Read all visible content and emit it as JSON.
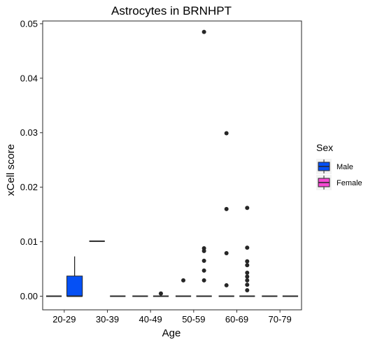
{
  "chart_data": {
    "type": "boxplot",
    "title": "Astrocytes in BRNHPT",
    "xlabel": "Age",
    "ylabel": "xCell score",
    "ylim": [
      -0.0025,
      0.0505
    ],
    "y_ticks": [
      0.0,
      0.01,
      0.02,
      0.03,
      0.04,
      0.05
    ],
    "y_tick_labels": [
      "0.00",
      "0.01",
      "0.02",
      "0.03",
      "0.04",
      "0.05"
    ],
    "grid": false,
    "legend": {
      "title": "Sex",
      "placement": "right",
      "entries": [
        {
          "name": "Male",
          "color": "#0550F5"
        },
        {
          "name": "Female",
          "color": "#F549D2"
        }
      ]
    },
    "categories": [
      "20-29",
      "30-39",
      "40-49",
      "50-59",
      "60-69",
      "70-79"
    ],
    "series": [
      {
        "name": "Male",
        "color": "#0550F5",
        "boxes": [
          {
            "q1": 0.0,
            "median": 0.0,
            "q3": 0.0,
            "low": 0.0,
            "high": 0.0,
            "outliers": []
          },
          {
            "q1": 0.0101,
            "median": 0.0101,
            "q3": 0.0101,
            "low": 0.0101,
            "high": 0.0101,
            "outliers": []
          },
          {
            "q1": 0.0,
            "median": 0.0,
            "q3": 0.0,
            "low": 0.0,
            "high": 0.0,
            "outliers": []
          },
          {
            "q1": 0.0,
            "median": 0.0,
            "q3": 0.0,
            "low": 0.0,
            "high": 0.0,
            "outliers": [
              0.0029
            ]
          },
          {
            "q1": 0.0,
            "median": 0.0,
            "q3": 0.0,
            "low": 0.0,
            "high": 0.0,
            "outliers": [
              0.002,
              0.0079,
              0.016,
              0.0299
            ]
          },
          {
            "q1": 0.0,
            "median": 0.0,
            "q3": 0.0,
            "low": 0.0,
            "high": 0.0,
            "outliers": []
          }
        ]
      },
      {
        "name": "Female",
        "color": "#F549D2",
        "boxes": [
          {
            "q1": 0.0,
            "median": 0.0,
            "q3": 0.0037,
            "low": 0.0,
            "high": 0.0073,
            "outliers": [],
            "fill": "#0550F5"
          },
          {
            "q1": 0.0,
            "median": 0.0,
            "q3": 0.0,
            "low": 0.0,
            "high": 0.0,
            "outliers": []
          },
          {
            "q1": 0.0,
            "median": 0.0,
            "q3": 0.0,
            "low": 0.0,
            "high": 0.0,
            "outliers": [
              0.0005
            ]
          },
          {
            "q1": 0.0,
            "median": 0.0,
            "q3": 0.0,
            "low": 0.0,
            "high": 0.0,
            "outliers": [
              0.0029,
              0.0047,
              0.0065,
              0.0083,
              0.0088,
              0.0485
            ]
          },
          {
            "q1": 0.0,
            "median": 0.0,
            "q3": 0.0,
            "low": 0.0,
            "high": 0.0,
            "outliers": [
              0.0011,
              0.0021,
              0.0029,
              0.0036,
              0.0043,
              0.0057,
              0.0064,
              0.0089,
              0.0162
            ]
          },
          {
            "q1": 0.0,
            "median": 0.0,
            "q3": 0.0,
            "low": 0.0,
            "high": 0.0,
            "outliers": []
          }
        ]
      }
    ],
    "colors": {
      "box_outline": "#262626",
      "outlier": "#262626",
      "panel_border": "#262626",
      "legend_key_bg": "#F2F2F2"
    }
  }
}
